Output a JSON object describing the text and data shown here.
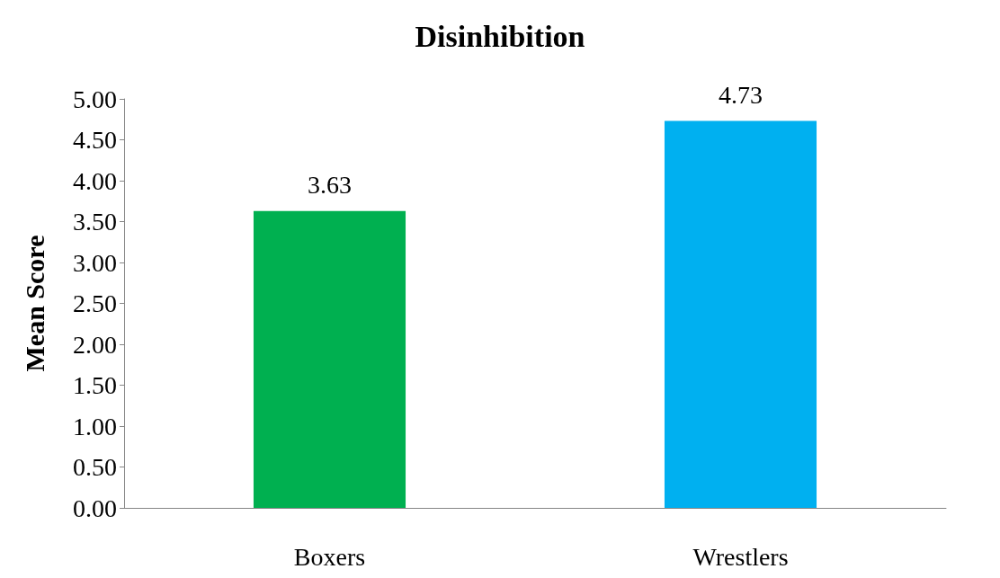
{
  "chart_data": {
    "type": "bar",
    "title": "Disinhibition",
    "ylabel": "Mean Score",
    "categories": [
      "Boxers",
      "Wrestlers"
    ],
    "values": [
      3.63,
      4.73
    ],
    "colors": [
      "#00b050",
      "#00b0f0"
    ],
    "ylim": [
      0,
      5
    ],
    "yticks": [
      {
        "value": 0,
        "label": "0.00"
      },
      {
        "value": 0.5,
        "label": "0.50"
      },
      {
        "value": 1,
        "label": "1.00"
      },
      {
        "value": 1.5,
        "label": "1.50"
      },
      {
        "value": 2,
        "label": "2.00"
      },
      {
        "value": 2.5,
        "label": "2.50"
      },
      {
        "value": 3,
        "label": "3.00"
      },
      {
        "value": 3.5,
        "label": "3.50"
      },
      {
        "value": 4,
        "label": "4.00"
      },
      {
        "value": 4.5,
        "label": "4.50"
      },
      {
        "value": 5,
        "label": "5.00"
      }
    ],
    "data_labels": true,
    "grid": false
  }
}
